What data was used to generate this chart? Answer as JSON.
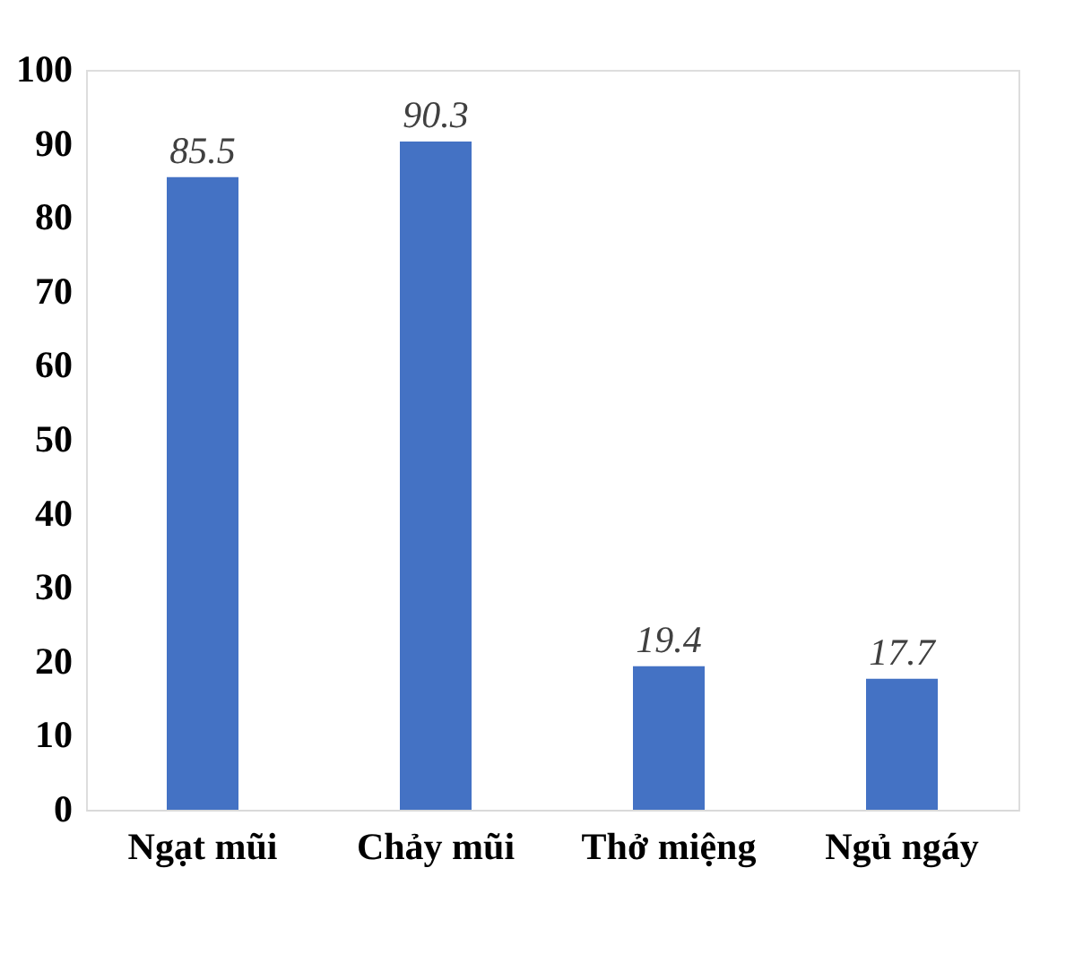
{
  "chart_data": {
    "type": "bar",
    "categories": [
      "Ngạt mũi",
      "Chảy mũi",
      "Thở miệng",
      "Ngủ ngáy"
    ],
    "values": [
      85.5,
      90.3,
      19.4,
      17.7
    ],
    "color": "#4472c4",
    "ylim": [
      0,
      100
    ],
    "yticks": [
      0,
      10,
      20,
      30,
      40,
      50,
      60,
      70,
      80,
      90,
      100
    ],
    "grid": false,
    "data_labels": true
  }
}
